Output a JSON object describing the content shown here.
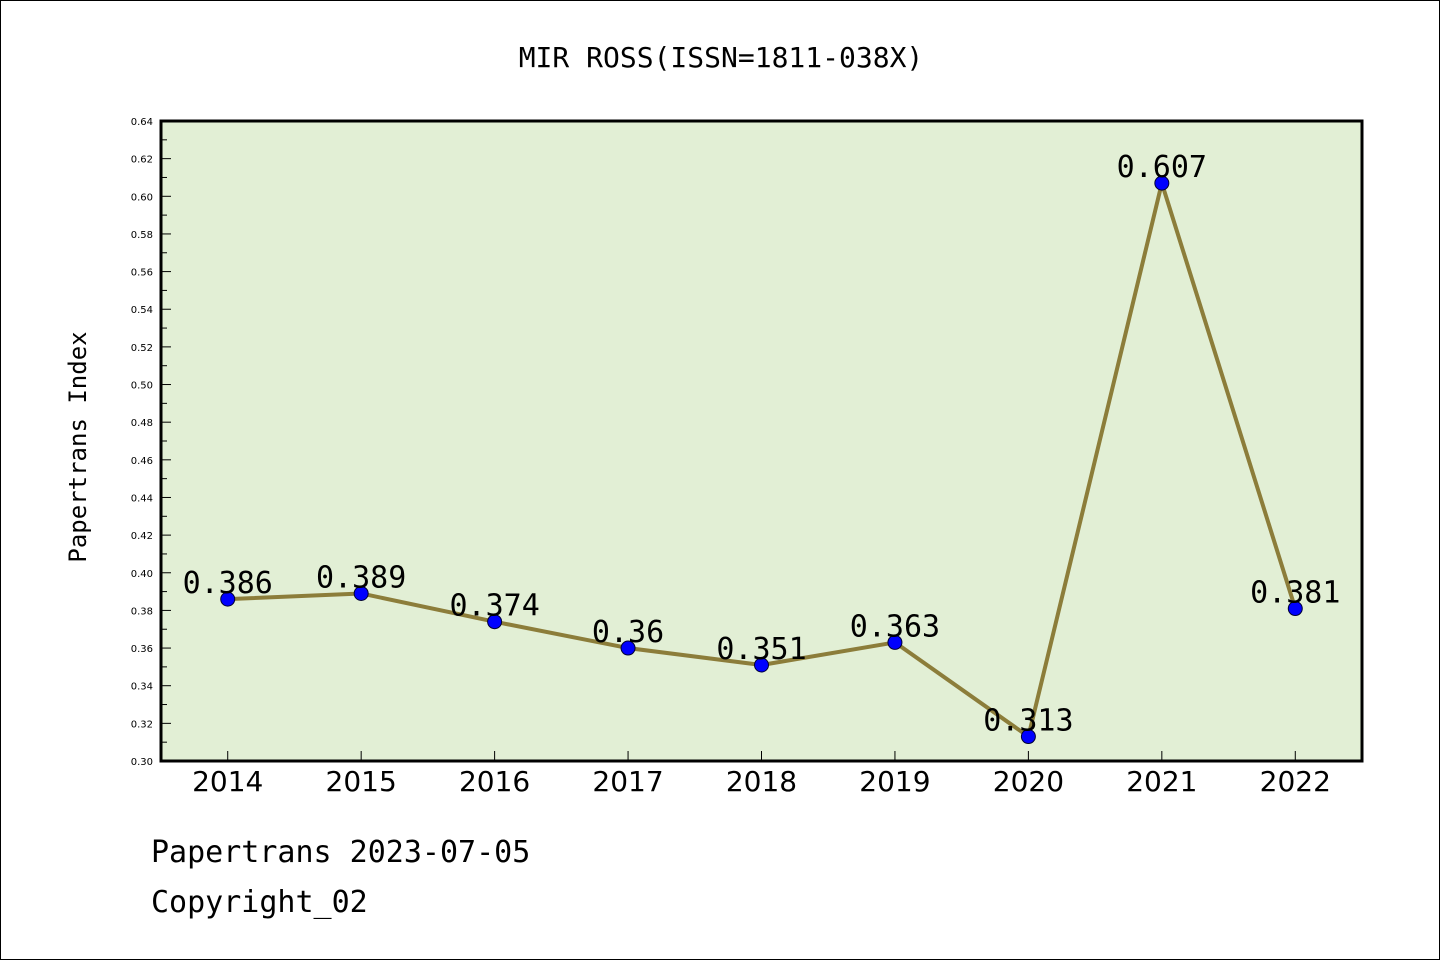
{
  "chart_data": {
    "type": "line",
    "title": "MIR ROSS(ISSN=1811-038X)",
    "xlabel": "",
    "ylabel": "Papertrans Index",
    "categories": [
      "2014",
      "2015",
      "2016",
      "2017",
      "2018",
      "2019",
      "2020",
      "2021",
      "2022"
    ],
    "series": [
      {
        "values": [
          0.386,
          0.389,
          0.374,
          0.36,
          0.351,
          0.363,
          0.313,
          0.607,
          0.381
        ]
      }
    ],
    "data_labels": [
      "0.386",
      "0.389",
      "0.374",
      "0.36",
      "0.351",
      "0.363",
      "0.313",
      "0.607",
      "0.381"
    ],
    "ylim": [
      0.3,
      0.64
    ],
    "yticks": [
      "0.30",
      "0.32",
      "0.34",
      "0.36",
      "0.38",
      "0.40",
      "0.42",
      "0.44",
      "0.46",
      "0.48",
      "0.50",
      "0.52",
      "0.54",
      "0.56",
      "0.58",
      "0.60",
      "0.62",
      "0.64"
    ],
    "grid": false,
    "legend": "none",
    "colors": {
      "line": "#8c7d3a",
      "marker": "#0000ff",
      "plot_background": "#e2efd5"
    }
  },
  "footer": {
    "source": "Papertrans 2023-07-05",
    "copyright": "Copyright_02"
  }
}
